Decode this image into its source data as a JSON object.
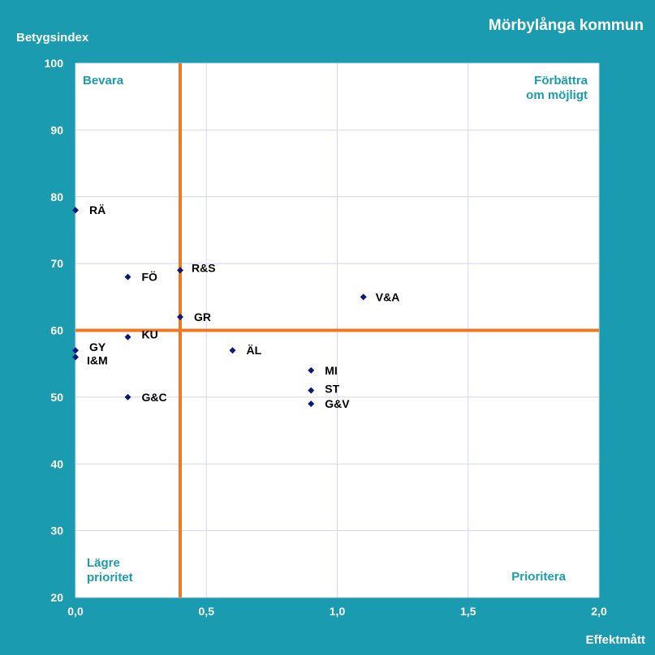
{
  "chart_data": {
    "type": "scatter",
    "title": "Mörbylånga kommun",
    "ylabel": "Betygsindex",
    "xlabel": "Effektmått",
    "xlim": [
      0,
      2
    ],
    "ylim": [
      20,
      100
    ],
    "x_ticks": [
      "0,0",
      "0,5",
      "1,0",
      "1,5",
      "2,0"
    ],
    "y_ticks": [
      "20",
      "30",
      "40",
      "50",
      "60",
      "70",
      "80",
      "90",
      "100"
    ],
    "grid": true,
    "reference_lines": {
      "x": 0.4,
      "y": 60,
      "color": "#f07820"
    },
    "quadrant_labels": {
      "top_left": [
        "Bevara"
      ],
      "top_right": [
        "Förbättra",
        "om möjligt"
      ],
      "bottom_left": [
        "Lägre",
        "prioritet"
      ],
      "bottom_right": [
        "Prioritera"
      ]
    },
    "marker_color": "#0a1a7a",
    "points": [
      {
        "label": "RÄ",
        "x": 0.0,
        "y": 78
      },
      {
        "label": "FÖ",
        "x": 0.2,
        "y": 68
      },
      {
        "label": "R&S",
        "x": 0.4,
        "y": 69
      },
      {
        "label": "V&A",
        "x": 1.1,
        "y": 65
      },
      {
        "label": "GR",
        "x": 0.4,
        "y": 62
      },
      {
        "label": "KU",
        "x": 0.2,
        "y": 59
      },
      {
        "label": "GY",
        "x": 0.0,
        "y": 57
      },
      {
        "label": "I&M",
        "x": 0.0,
        "y": 56
      },
      {
        "label": "ÄL",
        "x": 0.6,
        "y": 57
      },
      {
        "label": "MI",
        "x": 0.9,
        "y": 54
      },
      {
        "label": "ST",
        "x": 0.9,
        "y": 51
      },
      {
        "label": "G&V",
        "x": 0.9,
        "y": 49
      },
      {
        "label": "G&C",
        "x": 0.2,
        "y": 50
      }
    ]
  }
}
